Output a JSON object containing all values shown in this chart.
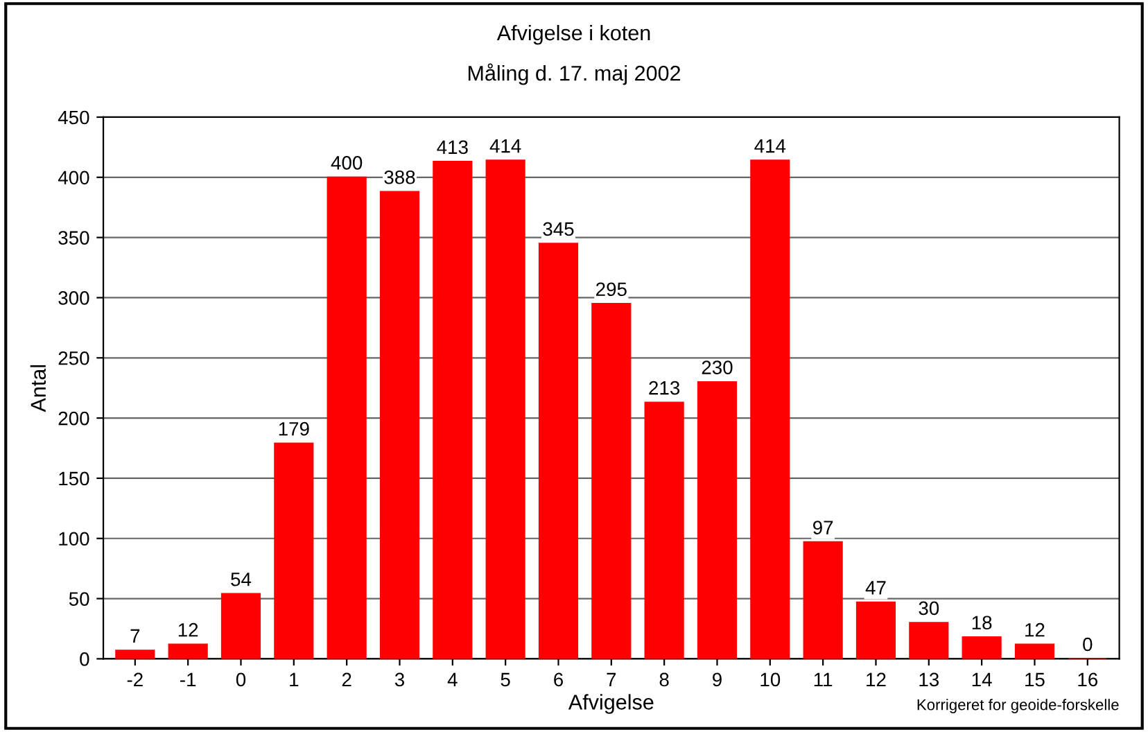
{
  "chart_data": {
    "type": "bar",
    "title": "Afvigelse i koten",
    "subtitle": "Måling d. 17. maj 2002",
    "xlabel": "Afvigelse",
    "ylabel": "Antal",
    "categories": [
      "-2",
      "-1",
      "0",
      "1",
      "2",
      "3",
      "4",
      "5",
      "6",
      "7",
      "8",
      "9",
      "10",
      "11",
      "12",
      "13",
      "14",
      "15",
      "16"
    ],
    "values": [
      7,
      12,
      54,
      179,
      400,
      388,
      413,
      414,
      345,
      295,
      213,
      230,
      414,
      97,
      47,
      30,
      18,
      12,
      0
    ],
    "color": "#ff0000",
    "ylim": [
      0,
      450
    ],
    "yticks": [
      0,
      50,
      100,
      150,
      200,
      250,
      300,
      350,
      400,
      450
    ],
    "grid": "y",
    "data_labels": true,
    "annotations": [
      "Korrigeret for geoide-forskelle"
    ]
  }
}
